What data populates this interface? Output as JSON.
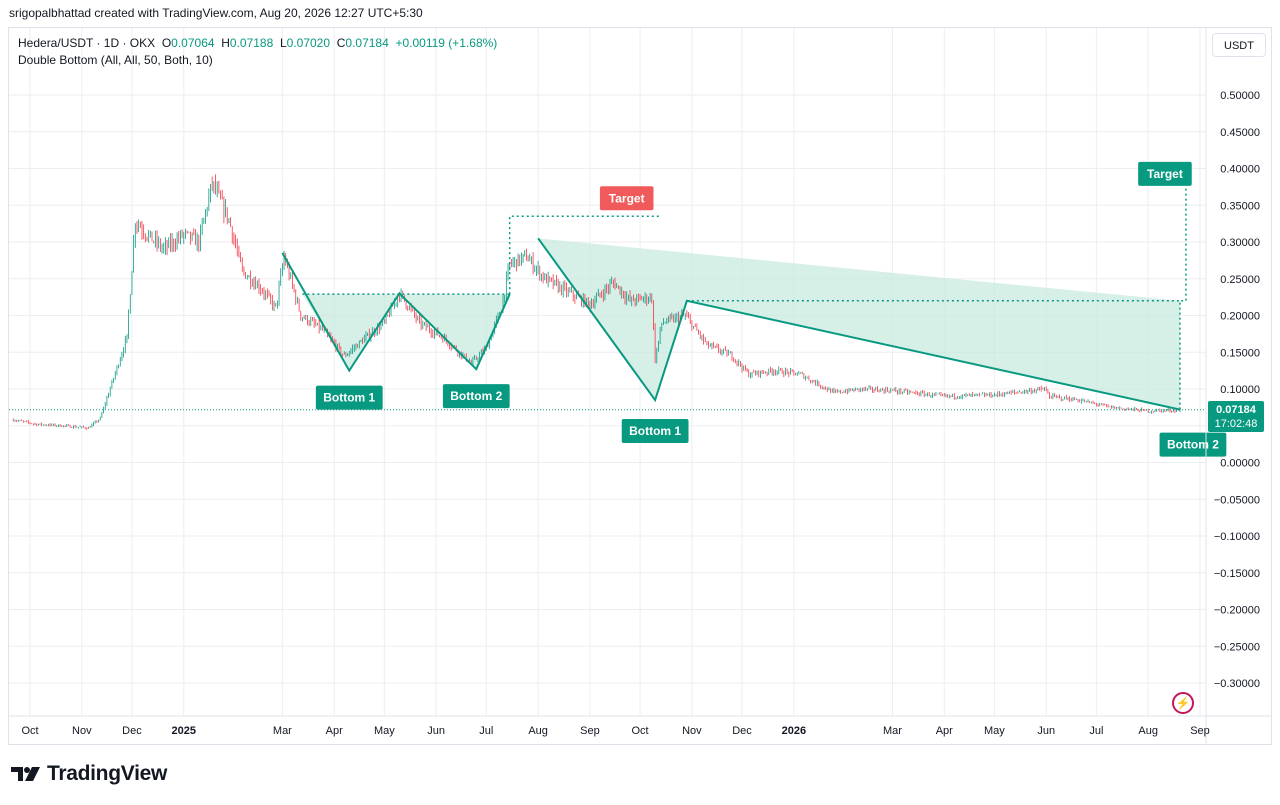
{
  "header": {
    "caption": "srigopalbhattad created with TradingView.com, Aug 20, 2026 12:27 UTC+5:30"
  },
  "legend": {
    "symbol": "Hedera/USDT · 1D · OKX",
    "o_label": "O",
    "o": "0.07064",
    "h_label": "H",
    "h": "0.07188",
    "l_label": "L",
    "l": "0.07020",
    "c_label": "C",
    "c": "0.07184",
    "change": "+0.00119 (+1.68%)",
    "indicator": "Double Bottom (All, All, 50, Both, 10)"
  },
  "unit": "USDT",
  "last_price": {
    "value": "0.07184",
    "countdown": "17:02:48"
  },
  "footer": {
    "brand": "TradingView"
  },
  "colors": {
    "up": "#089981",
    "down": "#f23645",
    "pattern": "#089981",
    "fill": "#c8eadf",
    "target_red": "#f15a5a",
    "grid": "#eceef3"
  },
  "icons": {
    "replay": "lightning-icon",
    "logo": "tradingview-logo-icon"
  },
  "chart_data": {
    "type": "candlestick",
    "title": "Hedera/USDT · 1D · OKX",
    "xlabel": "",
    "ylabel": "",
    "ylim": [
      -0.35,
      0.55
    ],
    "grid": true,
    "y_ticks": [
      "0.50000",
      "0.45000",
      "0.40000",
      "0.35000",
      "0.30000",
      "0.25000",
      "0.20000",
      "0.15000",
      "0.10000",
      "0.05000",
      "0.00000",
      "−0.05000",
      "−0.10000",
      "−0.15000",
      "−0.20000",
      "−0.25000",
      "−0.30000"
    ],
    "y_tick_values": [
      0.5,
      0.45,
      0.4,
      0.35,
      0.3,
      0.25,
      0.2,
      0.15,
      0.1,
      0.05,
      0,
      -0.05,
      -0.1,
      -0.15,
      -0.2,
      -0.25,
      -0.3
    ],
    "x_ticks": [
      {
        "label": "Oct",
        "date": "2024-10-01"
      },
      {
        "label": "Nov",
        "date": "2024-11-01"
      },
      {
        "label": "Dec",
        "date": "2024-12-01"
      },
      {
        "label": "2025",
        "date": "2025-01-01"
      },
      {
        "label": "Mar",
        "date": "2025-03-01"
      },
      {
        "label": "Apr",
        "date": "2025-04-01"
      },
      {
        "label": "May",
        "date": "2025-05-01"
      },
      {
        "label": "Jun",
        "date": "2025-06-01"
      },
      {
        "label": "Jul",
        "date": "2025-07-01"
      },
      {
        "label": "Aug",
        "date": "2025-08-01"
      },
      {
        "label": "Sep",
        "date": "2025-09-01"
      },
      {
        "label": "Oct",
        "date": "2025-10-01"
      },
      {
        "label": "Nov",
        "date": "2025-11-01"
      },
      {
        "label": "Dec",
        "date": "2025-12-01"
      },
      {
        "label": "2026",
        "date": "2026-01-01"
      },
      {
        "label": "Mar",
        "date": "2026-03-01"
      },
      {
        "label": "Apr",
        "date": "2026-04-01"
      },
      {
        "label": "May",
        "date": "2026-05-01"
      },
      {
        "label": "Jun",
        "date": "2026-06-01"
      },
      {
        "label": "Jul",
        "date": "2026-07-01"
      },
      {
        "label": "Aug",
        "date": "2026-08-01"
      },
      {
        "label": "Sep",
        "date": "2026-09-01"
      }
    ],
    "price_path": [
      [
        "2024-09-21",
        0.058
      ],
      [
        "2024-10-05",
        0.052
      ],
      [
        "2024-10-20",
        0.05
      ],
      [
        "2024-11-05",
        0.047
      ],
      [
        "2024-11-12",
        0.06
      ],
      [
        "2024-11-20",
        0.115
      ],
      [
        "2024-11-28",
        0.17
      ],
      [
        "2024-12-03",
        0.33
      ],
      [
        "2024-12-10",
        0.31
      ],
      [
        "2024-12-20",
        0.29
      ],
      [
        "2025-01-01",
        0.31
      ],
      [
        "2025-01-10",
        0.3
      ],
      [
        "2025-01-18",
        0.38
      ],
      [
        "2025-01-28",
        0.33
      ],
      [
        "2025-02-05",
        0.26
      ],
      [
        "2025-02-15",
        0.24
      ],
      [
        "2025-02-25",
        0.21
      ],
      [
        "2025-03-02",
        0.28
      ],
      [
        "2025-03-12",
        0.2
      ],
      [
        "2025-03-25",
        0.18
      ],
      [
        "2025-04-07",
        0.145
      ],
      [
        "2025-04-20",
        0.17
      ],
      [
        "2025-05-01",
        0.19
      ],
      [
        "2025-05-10",
        0.23
      ],
      [
        "2025-05-22",
        0.19
      ],
      [
        "2025-06-05",
        0.17
      ],
      [
        "2025-06-22",
        0.135
      ],
      [
        "2025-07-01",
        0.155
      ],
      [
        "2025-07-10",
        0.21
      ],
      [
        "2025-07-15",
        0.27
      ],
      [
        "2025-07-25",
        0.28
      ],
      [
        "2025-08-05",
        0.25
      ],
      [
        "2025-08-20",
        0.23
      ],
      [
        "2025-09-01",
        0.215
      ],
      [
        "2025-09-15",
        0.245
      ],
      [
        "2025-09-25",
        0.22
      ],
      [
        "2025-10-08",
        0.225
      ],
      [
        "2025-10-10",
        0.14
      ],
      [
        "2025-10-14",
        0.19
      ],
      [
        "2025-10-28",
        0.2
      ],
      [
        "2025-11-10",
        0.16
      ],
      [
        "2025-11-25",
        0.145
      ],
      [
        "2025-12-05",
        0.12
      ],
      [
        "2025-12-20",
        0.125
      ],
      [
        "2026-01-05",
        0.12
      ],
      [
        "2026-01-25",
        0.095
      ],
      [
        "2026-02-10",
        0.1
      ],
      [
        "2026-03-01",
        0.098
      ],
      [
        "2026-04-01",
        0.09
      ],
      [
        "2026-05-01",
        0.092
      ],
      [
        "2026-05-31",
        0.1
      ],
      [
        "2026-06-03",
        0.09
      ],
      [
        "2026-06-20",
        0.085
      ],
      [
        "2026-07-10",
        0.075
      ],
      [
        "2026-08-01",
        0.07
      ],
      [
        "2026-08-20",
        0.0718
      ]
    ],
    "last_close": 0.07184,
    "patterns": [
      {
        "name": "Double Bottom",
        "points": [
          [
            "2025-03-01",
            0.285
          ],
          [
            "2025-04-10",
            0.125
          ],
          [
            "2025-05-10",
            0.23
          ],
          [
            "2025-06-25",
            0.127
          ],
          [
            "2025-07-15",
            0.229
          ]
        ],
        "neckline": 0.229,
        "labels": [
          "Bottom 1",
          "Bottom 2"
        ],
        "target_label": "Target",
        "target_value": 0.335,
        "target_status": "hit"
      },
      {
        "name": "Double Bottom",
        "points": [
          [
            "2025-08-01",
            0.305
          ],
          [
            "2025-10-10",
            0.085
          ],
          [
            "2025-10-29",
            0.22
          ],
          [
            "2026-08-20",
            0.072
          ]
        ],
        "neckline": 0.22,
        "labels": [
          "Bottom 1",
          "Bottom 2"
        ],
        "target_label": "Target",
        "target_value": 0.375,
        "target_status": "pending"
      }
    ]
  }
}
